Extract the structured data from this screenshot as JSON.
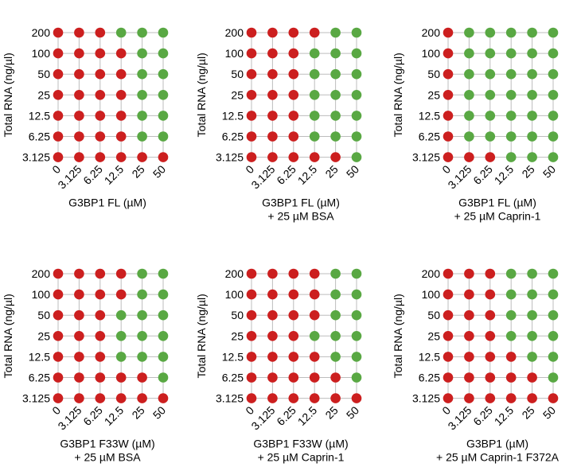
{
  "colors": {
    "phase_separated": "#cc1f1f",
    "no_phase_separation": "#59a843",
    "grid": "#bdbdbd"
  },
  "chart_data": [
    {
      "type": "scatter",
      "x_ticks": [
        "0",
        "3.125",
        "6.25",
        "12.5",
        "25",
        "50"
      ],
      "y_ticks": [
        "200",
        "100",
        "50",
        "25",
        "12.5",
        "6.25",
        "3.125"
      ],
      "ylabel": "Total RNA (ng/µl)",
      "xlabel_lines": [
        "G3BP1 FL (µM)"
      ],
      "grid": true,
      "state_rows_top_to_bottom": [
        "RRRGGG",
        "RRRRGG",
        "RRRRGG",
        "RRRRGG",
        "RRRRGG",
        "RRRRGG",
        "RRRRRR"
      ]
    },
    {
      "type": "scatter",
      "x_ticks": [
        "0",
        "3.125",
        "6.25",
        "12.5",
        "25",
        "50"
      ],
      "y_ticks": [
        "200",
        "100",
        "50",
        "25",
        "12.5",
        "6.25",
        "3.125"
      ],
      "ylabel": "Total RNA (ng/µl)",
      "xlabel_lines": [
        "G3BP1 FL (µM)",
        "+ 25 µM BSA"
      ],
      "grid": true,
      "state_rows_top_to_bottom": [
        "RRRRGG",
        "RRRGGG",
        "RRRGGG",
        "RRRGGG",
        "RRRGGG",
        "RRRGGG",
        "RRRRRG"
      ]
    },
    {
      "type": "scatter",
      "x_ticks": [
        "0",
        "3.125",
        "6.25",
        "12.5",
        "25",
        "50"
      ],
      "y_ticks": [
        "200",
        "100",
        "50",
        "25",
        "12.5",
        "6.25",
        "3.125"
      ],
      "ylabel": "Total RNA (ng/µl)",
      "xlabel_lines": [
        "G3BP1 FL (µM)",
        "+ 25 µM Caprin-1"
      ],
      "grid": true,
      "state_rows_top_to_bottom": [
        "RGGGGG",
        "RGGGGG",
        "RGGGGG",
        "RGGGGG",
        "RGGGGG",
        "RGGGGG",
        "RRRGGG"
      ]
    },
    {
      "type": "scatter",
      "x_ticks": [
        "0",
        "3.125",
        "6.25",
        "12.5",
        "25",
        "50"
      ],
      "y_ticks": [
        "200",
        "100",
        "50",
        "25",
        "12.5",
        "6.25",
        "3.125"
      ],
      "ylabel": "Total RNA (ng/µl)",
      "xlabel_lines": [
        "G3BP1 F33W (µM)",
        "+ 25 µM BSA"
      ],
      "grid": true,
      "state_rows_top_to_bottom": [
        "RRRRGG",
        "RRRRGG",
        "RRRGGG",
        "RRRGGG",
        "RRRGGG",
        "RRRRRG",
        "RRRRRR"
      ]
    },
    {
      "type": "scatter",
      "x_ticks": [
        "0",
        "3.125",
        "6.25",
        "12.5",
        "25",
        "50"
      ],
      "y_ticks": [
        "200",
        "100",
        "50",
        "25",
        "12.5",
        "6.25",
        "3.125"
      ],
      "ylabel": "Total RNA (ng/µl)",
      "xlabel_lines": [
        "G3BP1 F33W (µM)",
        "+ 25 µM Caprin-1"
      ],
      "grid": true,
      "state_rows_top_to_bottom": [
        "RRRRGG",
        "RRRRGG",
        "RRRRGG",
        "RRRGGG",
        "RRRRGG",
        "RRRRRG",
        "RRRRRR"
      ]
    },
    {
      "type": "scatter",
      "x_ticks": [
        "0",
        "3.125",
        "6.25",
        "12.5",
        "25",
        "50"
      ],
      "y_ticks": [
        "200",
        "100",
        "50",
        "25",
        "12.5",
        "6.25",
        "3.125"
      ],
      "ylabel": "Total RNA (ng/µl)",
      "xlabel_lines": [
        "G3BP1 (µM)",
        "+ 25 µM Caprin-1 F372A"
      ],
      "grid": true,
      "state_rows_top_to_bottom": [
        "RRRGGG",
        "RRRGGG",
        "RRRGGG",
        "RRRGGG",
        "RRRRGG",
        "RRRRRG",
        "RRRRRR"
      ]
    }
  ]
}
